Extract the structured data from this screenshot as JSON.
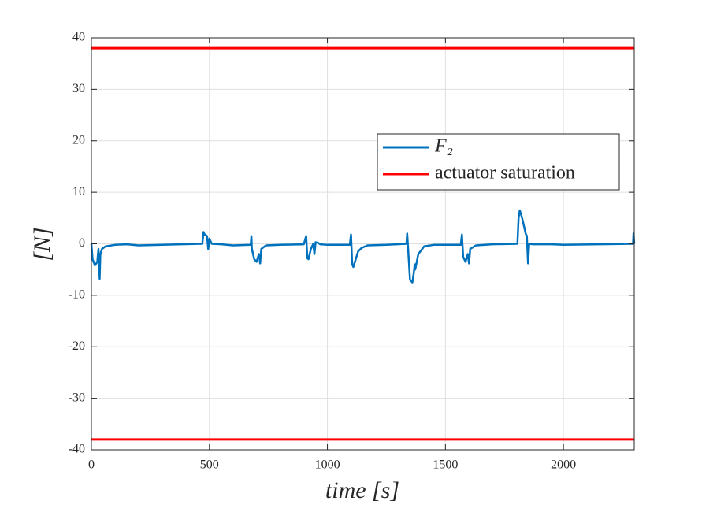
{
  "chart_data": {
    "type": "line",
    "xlabel": "time [s]",
    "ylabel": "[N]",
    "xlim": [
      0,
      2300
    ],
    "ylim": [
      -40,
      40
    ],
    "xticks": [
      0,
      500,
      1000,
      1500,
      2000
    ],
    "yticks": [
      -40,
      -30,
      -20,
      -10,
      0,
      10,
      20,
      30,
      40
    ],
    "grid": true,
    "legend": "right",
    "series": [
      {
        "name": "F₂",
        "color": "#0072bd",
        "x": [
          0,
          5,
          15,
          25,
          30,
          35,
          38,
          45,
          60,
          100,
          150,
          200,
          300,
          470,
          475,
          480,
          490,
          495,
          500,
          510,
          550,
          600,
          675,
          678,
          680,
          690,
          700,
          710,
          715,
          720,
          740,
          800,
          900,
          910,
          915,
          920,
          930,
          940,
          945,
          950,
          960,
          970,
          1000,
          1095,
          1100,
          1105,
          1110,
          1120,
          1130,
          1145,
          1170,
          1250,
          1335,
          1338,
          1342,
          1350,
          1360,
          1365,
          1370,
          1372,
          1385,
          1410,
          1450,
          1565,
          1570,
          1575,
          1585,
          1595,
          1600,
          1605,
          1630,
          1700,
          1805,
          1810,
          1815,
          1825,
          1840,
          1845,
          1850,
          1855,
          1870,
          1950,
          2000,
          2150,
          2295,
          2297,
          2300
        ],
        "values": [
          0,
          -3,
          -4.2,
          -3.5,
          -1,
          -6.8,
          -2,
          -1,
          -0.5,
          -0.2,
          -0.1,
          -0.3,
          -0.2,
          0,
          2.3,
          1.8,
          1.5,
          -1,
          1,
          0,
          -0.1,
          -0.3,
          -0.2,
          1.5,
          -1,
          -3,
          -3.5,
          -2,
          -3.8,
          -1,
          -0.3,
          -0.2,
          -0.1,
          1.5,
          -2.8,
          -3,
          -1,
          0,
          -2,
          0.3,
          0.2,
          -0.1,
          -0.2,
          -0.2,
          1.8,
          -4,
          -4.5,
          -3,
          -1.5,
          -0.8,
          -0.3,
          -0.2,
          0,
          2,
          -1,
          -7,
          -7.5,
          -6,
          -4,
          -5,
          -2,
          -0.5,
          -0.2,
          -0.2,
          1.8,
          -2.5,
          -3.5,
          -2,
          -3.8,
          -1,
          -0.3,
          -0.1,
          0,
          5,
          6.5,
          5,
          2,
          1.5,
          -3.8,
          0,
          -0.1,
          -0.1,
          -0.2,
          -0.1,
          0,
          2,
          0
        ]
      }
    ],
    "saturation": {
      "name": "actuator saturation",
      "color": "#ff0000",
      "values": [
        38,
        -38
      ]
    }
  }
}
